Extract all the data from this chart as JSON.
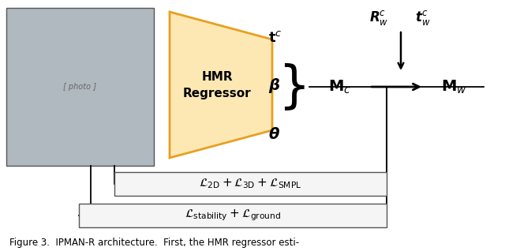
{
  "fig_width": 6.4,
  "fig_height": 3.18,
  "dpi": 100,
  "bg_color": "#ffffff",
  "trap_face": "#fde8b4",
  "trap_edge": "#e8a020",
  "box_face": "#f5f5f5",
  "box_edge": "#555555",
  "line_color": "#000000",
  "caption": "Figure 3.  IPMAN-R architecture.  First, the HMR regressor esti-"
}
